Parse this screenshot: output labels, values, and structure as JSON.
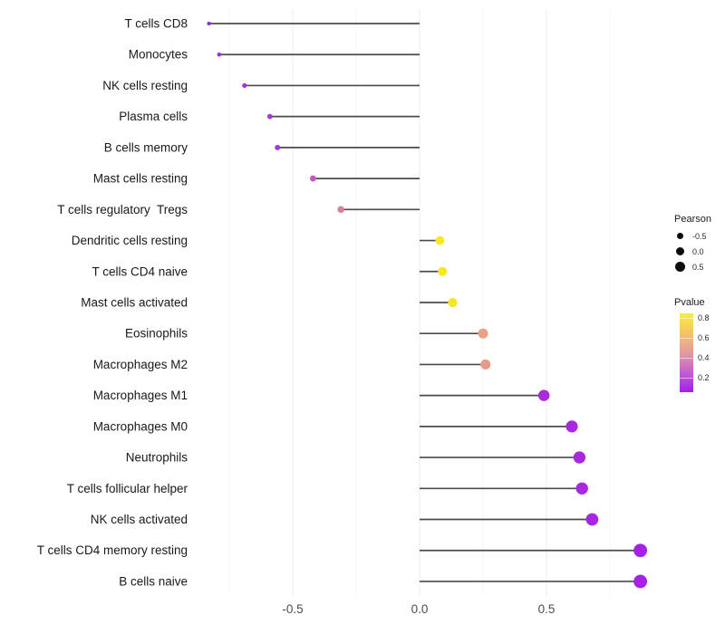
{
  "figure": {
    "background": "#ffffff",
    "stem_color": "#4b4b4b",
    "grid_major_color": "#ececec",
    "grid_minor_color": "#f6f6f6",
    "axis_text_color": "#4d4d4d",
    "category_text_color": "#191919"
  },
  "chart_data": {
    "type": "scatter",
    "variant": "lollipop",
    "orientation": "horizontal",
    "title": "",
    "xlabel": "",
    "ylabel": "",
    "xlim": [
      -0.9,
      0.92
    ],
    "grid": {
      "major": [
        -0.5,
        0.0,
        0.5
      ],
      "minor": [
        -0.75,
        -0.25,
        0.25,
        0.75
      ]
    },
    "x_tick_values": [
      -0.5,
      0.0,
      0.5
    ],
    "x_tick_labels": [
      "-0.5",
      "0.0",
      "0.5"
    ],
    "legend_position": "right",
    "points": [
      {
        "category": "T cells CD8",
        "pearson": -0.83,
        "pvalue": 0.08,
        "color": "#8E2BDA"
      },
      {
        "category": "Monocytes",
        "pearson": -0.79,
        "pvalue": 0.1,
        "color": "#9C2FDC"
      },
      {
        "category": "NK cells resting",
        "pearson": -0.69,
        "pvalue": 0.12,
        "color": "#A233DB"
      },
      {
        "category": "Plasma cells",
        "pearson": -0.59,
        "pvalue": 0.13,
        "color": "#A637D8"
      },
      {
        "category": "B cells memory",
        "pearson": -0.56,
        "pvalue": 0.13,
        "color": "#A43BD8"
      },
      {
        "category": "Mast cells resting",
        "pearson": -0.42,
        "pvalue": 0.27,
        "color": "#C05BBE"
      },
      {
        "category": "T cells regulatory  Tregs",
        "pearson": -0.31,
        "pvalue": 0.42,
        "color": "#D6819D"
      },
      {
        "category": "Dendritic cells resting",
        "pearson": 0.08,
        "pvalue": 0.8,
        "color": "#F6E822"
      },
      {
        "category": "T cells CD4 naive",
        "pearson": 0.09,
        "pvalue": 0.8,
        "color": "#F6E822"
      },
      {
        "category": "Mast cells activated",
        "pearson": 0.13,
        "pvalue": 0.78,
        "color": "#F5E52B"
      },
      {
        "category": "Eosinophils",
        "pearson": 0.25,
        "pvalue": 0.55,
        "color": "#E9A284"
      },
      {
        "category": "Macrophages M2",
        "pearson": 0.26,
        "pvalue": 0.57,
        "color": "#E59D8B"
      },
      {
        "category": "Macrophages M1",
        "pearson": 0.49,
        "pvalue": 0.12,
        "color": "#AA2CD9"
      },
      {
        "category": "Macrophages M0",
        "pearson": 0.6,
        "pvalue": 0.1,
        "color": "#A828DE"
      },
      {
        "category": "Neutrophils",
        "pearson": 0.63,
        "pvalue": 0.1,
        "color": "#A928DD"
      },
      {
        "category": "T cells follicular helper",
        "pearson": 0.64,
        "pvalue": 0.1,
        "color": "#A928DD"
      },
      {
        "category": "NK cells activated",
        "pearson": 0.68,
        "pvalue": 0.09,
        "color": "#A627DF"
      },
      {
        "category": "T cells CD4 memory resting",
        "pearson": 0.87,
        "pvalue": 0.06,
        "color": "#A322E4"
      },
      {
        "category": "B cells naive",
        "pearson": 0.87,
        "pvalue": 0.05,
        "color": "#A322E4"
      }
    ],
    "size_legend": {
      "title": "Pearson",
      "entries": [
        {
          "label": "-0.5",
          "diameter": 7
        },
        {
          "label": "0.0",
          "diameter": 9
        },
        {
          "label": "0.5",
          "diameter": 11
        }
      ]
    },
    "color_legend": {
      "title": "Pvalue",
      "tick_labels": [
        "0.8",
        "0.6",
        "0.4",
        "0.2"
      ],
      "gradient_top_to_bottom": [
        "#FBEC3F",
        "#F5C468",
        "#E39BA0",
        "#C45ED2",
        "#A01FE8"
      ]
    }
  }
}
